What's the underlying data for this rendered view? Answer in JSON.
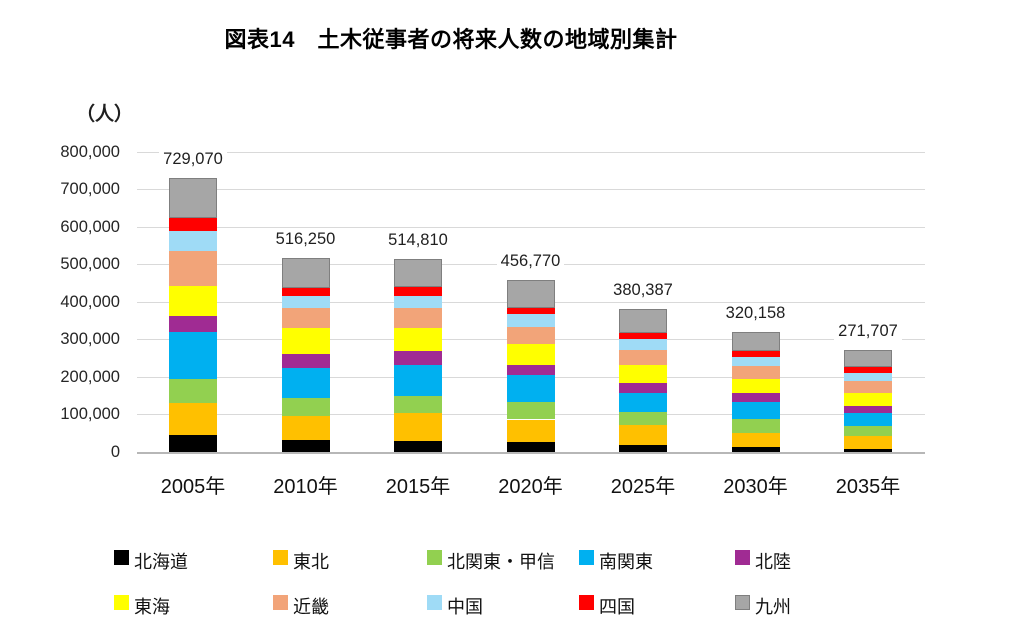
{
  "title": "図表14　土木従事者の将来人数の地域別集計",
  "y_axis": {
    "unit_label": "（人）",
    "ticks": [
      "800,000",
      "700,000",
      "600,000",
      "500,000",
      "400,000",
      "300,000",
      "200,000",
      "100,000",
      "0"
    ],
    "max": 800000,
    "tick_step": 100000
  },
  "chart_data": {
    "type": "bar",
    "stacked": true,
    "title": "図表14　土木従事者の将来人数の地域別集計",
    "ylabel": "（人）",
    "ylim": [
      0,
      800000
    ],
    "grid": true,
    "legend_position": "bottom",
    "categories": [
      "2005年",
      "2010年",
      "2015年",
      "2020年",
      "2025年",
      "2030年",
      "2035年"
    ],
    "totals": [
      729070,
      516250,
      514810,
      456770,
      380387,
      320158,
      271707
    ],
    "totals_labels": [
      "729,070",
      "516,250",
      "514,810",
      "456,770",
      "380,387",
      "320,158",
      "271,707"
    ],
    "series": [
      {
        "name": "北海道",
        "color": "#000000",
        "values": [
          45600,
          32900,
          28700,
          25700,
          17500,
          13400,
          8800
        ]
      },
      {
        "name": "東北",
        "color": "#FFC000",
        "values": [
          86000,
          62400,
          74400,
          60800,
          55000,
          37500,
          34500
        ]
      },
      {
        "name": "北関東・甲信",
        "color": "#92D050",
        "values": [
          61700,
          49200,
          47300,
          46300,
          35300,
          37500,
          26600
        ]
      },
      {
        "name": "南関東",
        "color": "#00B0F0",
        "values": [
          126100,
          80300,
          82500,
          71500,
          50400,
          44500,
          33700
        ]
      },
      {
        "name": "北陸",
        "color": "#A02B93",
        "values": [
          42900,
          35600,
          35700,
          26800,
          26600,
          23300,
          19400
        ]
      },
      {
        "name": "東海",
        "color": "#FFFF00",
        "values": [
          80400,
          68700,
          62800,
          56300,
          47000,
          39300,
          33700
        ]
      },
      {
        "name": "近畿",
        "color": "#F2A479",
        "values": [
          91200,
          53500,
          51800,
          46300,
          39800,
          33800,
          32700
        ]
      },
      {
        "name": "中国",
        "color": "#9FDBF6",
        "values": [
          53600,
          33600,
          33100,
          32500,
          30000,
          24100,
          22000
        ]
      },
      {
        "name": "四国",
        "color": "#FF0000",
        "values": [
          34700,
          20600,
          22600,
          17900,
          15900,
          16000,
          14300
        ]
      },
      {
        "name": "九州",
        "color": "#A6A6A6",
        "border": "#7F7F7F",
        "values": [
          106870,
          79450,
          75910,
          72670,
          62887,
          50758,
          46007
        ]
      }
    ]
  }
}
